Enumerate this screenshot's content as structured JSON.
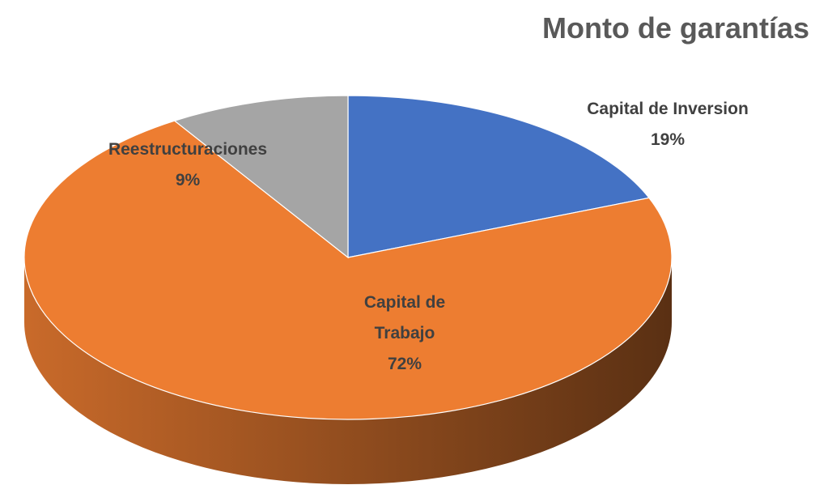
{
  "chart_data": {
    "type": "pie",
    "title": "Monto de garantías",
    "categories": [
      "Capital de Inversion",
      "Capital de Trabajo",
      "Reestructuraciones"
    ],
    "values": [
      19,
      72,
      9
    ],
    "value_labels": [
      "19%",
      "72%",
      "9%"
    ],
    "colors": [
      "#4472c4",
      "#ed7d31",
      "#a5a5a5"
    ]
  }
}
